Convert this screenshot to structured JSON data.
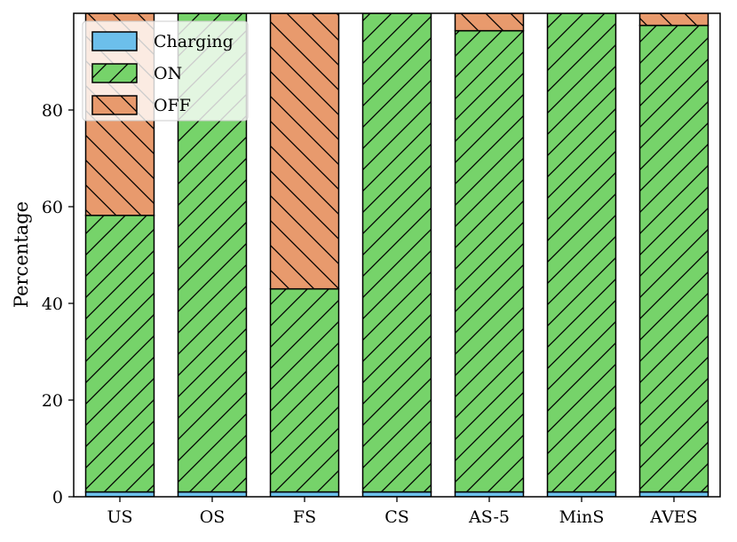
{
  "chart_data": {
    "type": "bar",
    "stacked": true,
    "ylabel": "Percentage",
    "xlabel": "",
    "title": "",
    "ylim": [
      0,
      100
    ],
    "yticks": [
      0,
      20,
      40,
      60,
      80
    ],
    "grid": false,
    "legend_placement": "top-left",
    "categories": [
      "US",
      "OS",
      "FS",
      "CS",
      "AS-5",
      "MinS",
      "AVES"
    ],
    "series": [
      {
        "name": "Charging",
        "color": "#6cbfeb",
        "hatch": "none",
        "values": [
          1.0,
          1.0,
          1.0,
          1.0,
          1.0,
          1.0,
          1.0
        ]
      },
      {
        "name": "ON",
        "color": "#76d36a",
        "hatch": "forward-slash",
        "values": [
          57.2,
          99.0,
          42.0,
          99.0,
          95.4,
          99.0,
          96.5
        ]
      },
      {
        "name": "OFF",
        "color": "#e89a6d",
        "hatch": "back-slash",
        "values": [
          41.8,
          0.0,
          57.0,
          0.0,
          3.6,
          0.0,
          2.5
        ]
      }
    ]
  }
}
